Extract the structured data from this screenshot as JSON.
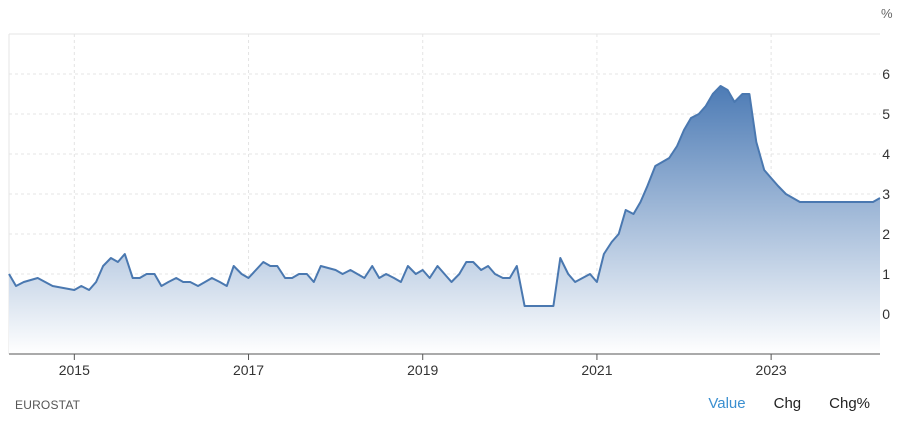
{
  "chart_data": {
    "type": "area",
    "unit_label": "%",
    "ylim": [
      -1,
      7
    ],
    "yticks": [
      0,
      1,
      2,
      3,
      4,
      5,
      6
    ],
    "xlim": [
      2014.25,
      2024.25
    ],
    "xticks": [
      2015,
      2017,
      2019,
      2021,
      2023
    ],
    "grid": true,
    "colors": {
      "line": "#4a78b0",
      "fill_top": "#4a79b4",
      "fill_bottom": "#ffffff",
      "grid": "#e4e4e4",
      "axis": "#555555"
    },
    "series": [
      {
        "x": [
          2014.25,
          2014.33,
          2014.42,
          2014.58,
          2014.75,
          2015.0,
          2015.08,
          2015.17,
          2015.25,
          2015.33,
          2015.42,
          2015.5,
          2015.58,
          2015.67,
          2015.75,
          2015.83,
          2015.92,
          2016.0,
          2016.08,
          2016.17,
          2016.25,
          2016.33,
          2016.42,
          2016.5,
          2016.58,
          2016.67,
          2016.75,
          2016.83,
          2016.92,
          2017.0,
          2017.17,
          2017.25,
          2017.33,
          2017.42,
          2017.5,
          2017.58,
          2017.67,
          2017.75,
          2017.83,
          2018.0,
          2018.08,
          2018.17,
          2018.25,
          2018.33,
          2018.42,
          2018.5,
          2018.58,
          2018.67,
          2018.75,
          2018.83,
          2018.92,
          2019.0,
          2019.08,
          2019.17,
          2019.25,
          2019.33,
          2019.42,
          2019.5,
          2019.58,
          2019.67,
          2019.75,
          2019.83,
          2019.92,
          2020.0,
          2020.08,
          2020.17,
          2020.25,
          2020.33,
          2020.5,
          2020.58,
          2020.67,
          2020.75,
          2020.92,
          2021.0,
          2021.08,
          2021.17,
          2021.25,
          2021.33,
          2021.42,
          2021.5,
          2021.58,
          2021.67,
          2021.75,
          2021.83,
          2021.92,
          2022.0,
          2022.08,
          2022.17,
          2022.25,
          2022.33,
          2022.42,
          2022.5,
          2022.58,
          2022.67,
          2022.75,
          2022.83,
          2022.92,
          2023.0,
          2023.08,
          2023.17,
          2023.25,
          2023.33,
          2023.42,
          2023.5,
          2023.58,
          2023.67,
          2023.75,
          2023.83,
          2023.92,
          2024.0,
          2024.08,
          2024.17,
          2024.25
        ],
        "values": [
          1.0,
          0.7,
          0.8,
          0.9,
          0.7,
          0.6,
          0.7,
          0.6,
          0.8,
          1.2,
          1.4,
          1.3,
          1.5,
          0.9,
          0.9,
          1.0,
          1.0,
          0.7,
          0.8,
          0.9,
          0.8,
          0.8,
          0.7,
          0.8,
          0.9,
          0.8,
          0.7,
          1.2,
          1.0,
          0.9,
          1.3,
          1.2,
          1.2,
          0.9,
          0.9,
          1.0,
          1.0,
          0.8,
          1.2,
          1.1,
          1.0,
          1.1,
          1.0,
          0.9,
          1.2,
          0.9,
          1.0,
          0.9,
          0.8,
          1.2,
          1.0,
          1.1,
          0.9,
          1.2,
          1.0,
          0.8,
          1.0,
          1.3,
          1.3,
          1.1,
          1.2,
          1.0,
          0.9,
          0.9,
          1.2,
          0.2,
          0.2,
          0.2,
          0.2,
          1.4,
          1.0,
          0.8,
          1.0,
          0.8,
          1.5,
          1.8,
          2.0,
          2.6,
          2.5,
          2.8,
          3.2,
          3.7,
          3.8,
          3.9,
          4.2,
          4.6,
          4.9,
          5.0,
          5.2,
          5.5,
          5.7,
          5.6,
          5.3,
          5.5,
          5.5,
          4.3,
          3.6,
          3.4,
          3.2,
          3.0,
          2.9,
          2.8,
          2.8,
          2.8,
          2.8,
          2.8,
          2.8,
          2.8,
          2.8,
          2.8,
          2.8,
          2.8,
          2.9
        ]
      }
    ]
  },
  "footer": {
    "source": "EUROSTAT",
    "tabs": [
      {
        "label": "Value",
        "active": true
      },
      {
        "label": "Chg",
        "active": false
      },
      {
        "label": "Chg%",
        "active": false
      }
    ]
  }
}
